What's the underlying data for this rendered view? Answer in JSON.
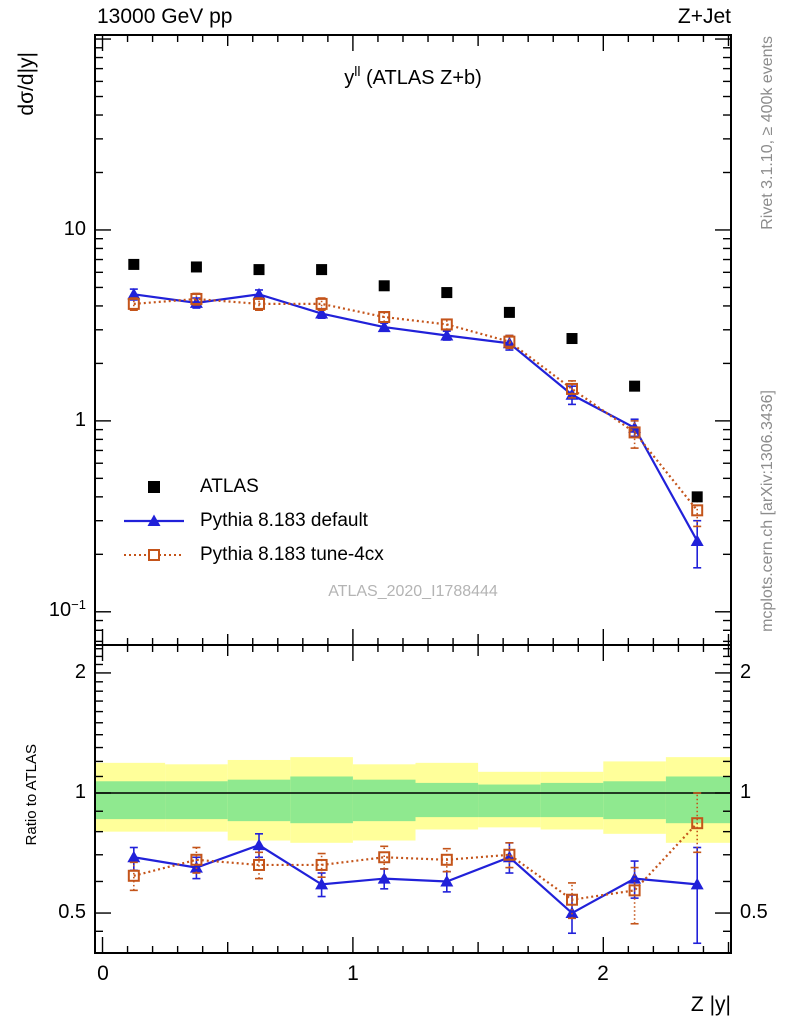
{
  "header": {
    "left": "13000 GeV pp",
    "right": "Z+Jet"
  },
  "title": {
    "base": "y",
    "sup": "ll",
    "rest": " (ATLAS Z+b)"
  },
  "watermark": "ATLAS_2020_I1788444",
  "side_notes": {
    "top": "Rivet 3.1.10, ≥ 400k events",
    "bottom": "mcplots.cern.ch [arXiv:1306.3436]"
  },
  "axes": {
    "y_label": "dσ/d|y|",
    "x_label": "Z |y|",
    "ratio_label": "Ratio to ATLAS",
    "main_ticks": {
      "t10": "10",
      "t1": "1",
      "t01_base": "10",
      "t01_sup": "−1"
    },
    "ratio_ticks": {
      "t2": "2",
      "t1": "1",
      "t05": "0.5"
    },
    "x_ticks": [
      "0",
      "1",
      "2"
    ]
  },
  "legend": [
    {
      "label": "ATLAS",
      "icon": "filled-square",
      "color": "#000000"
    },
    {
      "label": "Pythia 8.183 default",
      "icon": "line-triangle",
      "color": "#2121d9"
    },
    {
      "label": "Pythia 8.183 tune-4cx",
      "icon": "dotted-open-square",
      "color": "#c4541a"
    }
  ],
  "chart_data": {
    "type": "scatter",
    "title": "y^ll (ATLAS Z+b)",
    "xlabel": "Z |y|",
    "ylabel": "dσ/d|y|",
    "x": [
      0.125,
      0.375,
      0.625,
      0.875,
      1.125,
      1.375,
      1.625,
      1.875,
      2.125,
      2.375
    ],
    "bin_edges": [
      0,
      0.25,
      0.5,
      0.75,
      1.0,
      1.25,
      1.5,
      1.75,
      2.0,
      2.25,
      2.5
    ],
    "xlim": [
      -0.03,
      2.51
    ],
    "ylim": [
      0.067,
      105
    ],
    "yscale": "log",
    "grid": false,
    "legend_position": "inside-left",
    "series": [
      {
        "name": "ATLAS",
        "marker": "filled-square",
        "line": "none",
        "color": "#000000",
        "values": [
          6.6,
          6.4,
          6.2,
          6.2,
          5.1,
          4.7,
          3.7,
          2.7,
          1.52,
          0.4
        ]
      },
      {
        "name": "Pythia 8.183 default",
        "marker": "filled-triangle",
        "line": "solid",
        "color": "#2121d9",
        "values": [
          4.6,
          4.15,
          4.6,
          3.65,
          3.1,
          2.8,
          2.55,
          1.37,
          0.92,
          0.235
        ],
        "err_lo": [
          4.3,
          3.9,
          4.35,
          3.45,
          2.95,
          2.65,
          2.35,
          1.22,
          0.83,
          0.17
        ],
        "err_hi": [
          4.9,
          4.4,
          4.85,
          3.85,
          3.25,
          2.95,
          2.8,
          1.52,
          1.02,
          0.3
        ]
      },
      {
        "name": "Pythia 8.183 tune-4cx",
        "marker": "open-square",
        "line": "dotted",
        "color": "#c4541a",
        "values": [
          4.1,
          4.35,
          4.1,
          4.1,
          3.5,
          3.2,
          2.6,
          1.47,
          0.87,
          0.34
        ],
        "err_lo": [
          3.8,
          4.05,
          3.8,
          3.8,
          3.3,
          3.0,
          2.4,
          1.32,
          0.72,
          0.28
        ],
        "err_hi": [
          4.4,
          4.65,
          4.4,
          4.4,
          3.7,
          3.4,
          2.8,
          1.62,
          1.0,
          0.4
        ]
      }
    ],
    "ratio": {
      "ylim": [
        0.4,
        2.35
      ],
      "yticks_labeled": [
        0.5,
        1,
        2
      ],
      "series": [
        {
          "name": "Pythia 8.183 default",
          "marker": "filled-triangle",
          "line": "solid",
          "color": "#2121d9",
          "values": [
            0.69,
            0.65,
            0.74,
            0.59,
            0.61,
            0.6,
            0.69,
            0.5,
            0.61,
            0.59
          ],
          "err_lo": [
            0.64,
            0.61,
            0.69,
            0.55,
            0.575,
            0.565,
            0.63,
            0.445,
            0.545,
            0.42
          ],
          "err_hi": [
            0.73,
            0.69,
            0.79,
            0.63,
            0.645,
            0.635,
            0.75,
            0.555,
            0.675,
            0.73
          ]
        },
        {
          "name": "Pythia 8.183 tune-4cx",
          "marker": "open-square",
          "line": "dotted",
          "color": "#c4541a",
          "values": [
            0.62,
            0.68,
            0.66,
            0.66,
            0.69,
            0.68,
            0.7,
            0.54,
            0.57,
            0.84
          ],
          "err_lo": [
            0.57,
            0.63,
            0.61,
            0.615,
            0.645,
            0.635,
            0.65,
            0.485,
            0.47,
            0.71
          ],
          "err_hi": [
            0.67,
            0.73,
            0.71,
            0.705,
            0.735,
            0.725,
            0.75,
            0.595,
            0.65,
            1.0
          ]
        }
      ],
      "bands": {
        "yellow_color": "#ffff9a",
        "green_color": "#8fe98f",
        "yellow": [
          [
            0.8,
            1.19
          ],
          [
            0.8,
            1.18
          ],
          [
            0.76,
            1.21
          ],
          [
            0.75,
            1.23
          ],
          [
            0.76,
            1.18
          ],
          [
            0.81,
            1.19
          ],
          [
            0.82,
            1.13
          ],
          [
            0.81,
            1.13
          ],
          [
            0.79,
            1.2
          ],
          [
            0.75,
            1.23
          ]
        ],
        "green": [
          [
            0.86,
            1.07
          ],
          [
            0.86,
            1.07
          ],
          [
            0.85,
            1.08
          ],
          [
            0.84,
            1.1
          ],
          [
            0.85,
            1.08
          ],
          [
            0.87,
            1.06
          ],
          [
            0.87,
            1.05
          ],
          [
            0.87,
            1.06
          ],
          [
            0.86,
            1.07
          ],
          [
            0.84,
            1.1
          ]
        ]
      }
    }
  }
}
